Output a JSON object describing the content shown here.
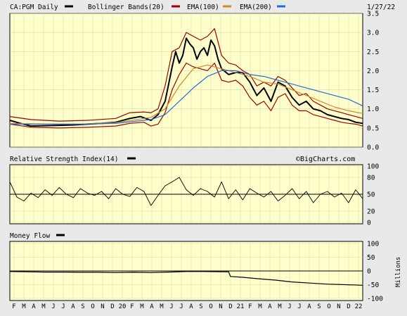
{
  "header": {
    "symbol_label": "CA:PGM Daily",
    "bollinger_label": "Bollinger Bands(20)",
    "ema100_label": "EMA(100)",
    "ema200_label": "EMA(200)",
    "date": "1/27/22"
  },
  "colors": {
    "background": "#e9e9e9",
    "plot_bg": "#ffffcc",
    "price": "#000000",
    "bollinger": "#a00000",
    "ema100": "#d08a2a",
    "ema200": "#1f6fe0",
    "grid": "#d8d8b0"
  },
  "rsi_panel": {
    "title": "Relative Strength Index(14)",
    "watermark": "©BigCharts.com"
  },
  "mf_panel": {
    "title": "Money Flow",
    "unit_label": "Millions"
  },
  "chart_data": [
    {
      "type": "line",
      "name": "price",
      "ylim": [
        0,
        3.5
      ],
      "y_ticks": [
        "0.0",
        "0.5",
        "1.0",
        "1.5",
        "2.0",
        "2.5",
        "3.0",
        "3.5"
      ],
      "y_tick_values": [
        0,
        0.5,
        1.0,
        1.5,
        2.0,
        2.5,
        3.0,
        3.5
      ],
      "x_index_range": [
        0,
        100
      ],
      "series": [
        {
          "name": "CA:PGM Daily",
          "color": "#000000",
          "x": [
            0,
            3,
            6,
            10,
            14,
            18,
            22,
            26,
            30,
            34,
            37,
            40,
            42,
            44,
            46,
            47,
            48,
            49,
            50,
            51,
            52,
            53,
            54,
            55,
            56,
            57,
            58,
            59,
            60,
            62,
            64,
            66,
            68,
            70,
            72,
            74,
            76,
            78,
            80,
            82,
            84,
            86,
            88,
            90,
            92,
            94,
            96,
            98,
            100
          ],
          "y": [
            0.7,
            0.62,
            0.55,
            0.56,
            0.57,
            0.58,
            0.6,
            0.62,
            0.65,
            0.75,
            0.8,
            0.7,
            0.85,
            1.2,
            2.1,
            2.5,
            2.2,
            2.4,
            2.85,
            2.7,
            2.6,
            2.3,
            2.5,
            2.6,
            2.4,
            2.8,
            2.65,
            2.3,
            2.05,
            1.9,
            1.95,
            1.95,
            1.7,
            1.35,
            1.55,
            1.2,
            1.7,
            1.6,
            1.3,
            1.1,
            1.2,
            1.0,
            0.95,
            0.85,
            0.8,
            0.75,
            0.72,
            0.65,
            0.62
          ]
        },
        {
          "name": "Bollinger Bands(20) upper",
          "color": "#a00000",
          "x": [
            0,
            6,
            14,
            22,
            30,
            34,
            38,
            40,
            42,
            44,
            46,
            48,
            50,
            52,
            54,
            56,
            58,
            60,
            62,
            64,
            66,
            68,
            70,
            72,
            74,
            76,
            78,
            80,
            82,
            84,
            86,
            88,
            90,
            92,
            94,
            96,
            98,
            100
          ],
          "y": [
            0.8,
            0.72,
            0.68,
            0.7,
            0.75,
            0.9,
            0.92,
            0.9,
            1.0,
            1.6,
            2.5,
            2.6,
            3.0,
            2.9,
            2.8,
            2.9,
            3.1,
            2.4,
            2.2,
            2.15,
            2.0,
            1.9,
            1.6,
            1.7,
            1.6,
            1.85,
            1.75,
            1.55,
            1.35,
            1.4,
            1.2,
            1.1,
            1.0,
            0.95,
            0.9,
            0.85,
            0.8,
            0.75
          ]
        },
        {
          "name": "Bollinger Bands(20) lower",
          "color": "#a00000",
          "x": [
            0,
            6,
            14,
            22,
            30,
            34,
            38,
            40,
            42,
            44,
            46,
            48,
            50,
            52,
            54,
            56,
            58,
            60,
            62,
            64,
            66,
            68,
            70,
            72,
            74,
            76,
            78,
            80,
            82,
            84,
            86,
            88,
            90,
            92,
            94,
            96,
            98,
            100
          ],
          "y": [
            0.6,
            0.52,
            0.5,
            0.52,
            0.55,
            0.62,
            0.65,
            0.55,
            0.6,
            0.9,
            1.5,
            1.9,
            2.2,
            2.1,
            2.05,
            2.0,
            2.2,
            1.75,
            1.7,
            1.75,
            1.6,
            1.3,
            1.1,
            1.2,
            0.95,
            1.3,
            1.4,
            1.1,
            0.95,
            0.95,
            0.85,
            0.8,
            0.75,
            0.7,
            0.65,
            0.62,
            0.6,
            0.55
          ]
        },
        {
          "name": "EMA(100)",
          "color": "#d08a2a",
          "x": [
            0,
            10,
            20,
            30,
            36,
            40,
            44,
            48,
            52,
            56,
            60,
            64,
            68,
            72,
            76,
            80,
            84,
            88,
            92,
            96,
            100
          ],
          "y": [
            0.62,
            0.6,
            0.6,
            0.64,
            0.72,
            0.78,
            1.0,
            1.6,
            2.05,
            2.15,
            2.05,
            1.95,
            1.85,
            1.7,
            1.65,
            1.5,
            1.35,
            1.2,
            1.05,
            0.95,
            0.88
          ]
        },
        {
          "name": "EMA(200)",
          "color": "#1f6fe0",
          "x": [
            0,
            10,
            20,
            30,
            36,
            40,
            44,
            48,
            52,
            56,
            60,
            64,
            68,
            72,
            76,
            80,
            84,
            88,
            92,
            96,
            100
          ],
          "y": [
            0.6,
            0.6,
            0.6,
            0.62,
            0.68,
            0.72,
            0.85,
            1.2,
            1.55,
            1.85,
            2.0,
            2.0,
            1.9,
            1.85,
            1.75,
            1.65,
            1.55,
            1.45,
            1.35,
            1.25,
            1.08
          ]
        }
      ]
    },
    {
      "type": "line",
      "name": "rsi",
      "title": "Relative Strength Index(14)",
      "ylim": [
        0,
        100
      ],
      "y_ticks": [
        "0",
        "20",
        "50",
        "80",
        "100"
      ],
      "y_tick_values": [
        0,
        20,
        50,
        80,
        100
      ],
      "reference_line": 50,
      "series": [
        {
          "name": "RSI(14)",
          "color": "#000000",
          "x": [
            0,
            2,
            4,
            6,
            8,
            10,
            12,
            14,
            16,
            18,
            20,
            22,
            24,
            26,
            28,
            30,
            32,
            34,
            36,
            38,
            40,
            42,
            44,
            46,
            48,
            50,
            52,
            54,
            56,
            58,
            60,
            62,
            64,
            66,
            68,
            70,
            72,
            74,
            76,
            78,
            80,
            82,
            84,
            86,
            88,
            90,
            92,
            94,
            96,
            98,
            100
          ],
          "y": [
            72,
            45,
            38,
            52,
            44,
            58,
            48,
            62,
            50,
            44,
            60,
            52,
            48,
            55,
            42,
            60,
            50,
            46,
            62,
            55,
            30,
            48,
            65,
            72,
            80,
            58,
            48,
            60,
            55,
            45,
            72,
            42,
            58,
            40,
            60,
            52,
            45,
            55,
            38,
            48,
            60,
            42,
            55,
            35,
            50,
            55,
            45,
            52,
            35,
            58,
            42
          ]
        }
      ]
    },
    {
      "type": "line",
      "name": "money_flow",
      "title": "Money Flow",
      "ylabel": "Millions",
      "ylim": [
        -100,
        100
      ],
      "y_ticks": [
        "100",
        "50",
        "0",
        "-50",
        "-100"
      ],
      "y_tick_values": [
        100,
        50,
        0,
        -50,
        -100
      ],
      "series": [
        {
          "name": "Money Flow",
          "color": "#000000",
          "x": [
            0,
            5,
            10,
            15,
            20,
            25,
            30,
            35,
            40,
            45,
            50,
            55,
            60,
            62,
            62.5,
            66,
            70,
            75,
            80,
            85,
            90,
            95,
            100
          ],
          "y": [
            -2,
            -3,
            -4,
            -4,
            -5,
            -5,
            -6,
            -5,
            -6,
            -4,
            -2,
            -2,
            -3,
            -3,
            -20,
            -23,
            -28,
            -33,
            -40,
            -44,
            -48,
            -50,
            -52
          ]
        }
      ]
    }
  ],
  "x_axis": {
    "labels": [
      "F",
      "M",
      "A",
      "M",
      "J",
      "J",
      "A",
      "S",
      "O",
      "N",
      "D",
      "20",
      "F",
      "M",
      "A",
      "M",
      "J",
      "J",
      "A",
      "S",
      "O",
      "N",
      "D",
      "21",
      "F",
      "M",
      "A",
      "M",
      "J",
      "J",
      "A",
      "S",
      "O",
      "N",
      "D",
      "22"
    ]
  }
}
